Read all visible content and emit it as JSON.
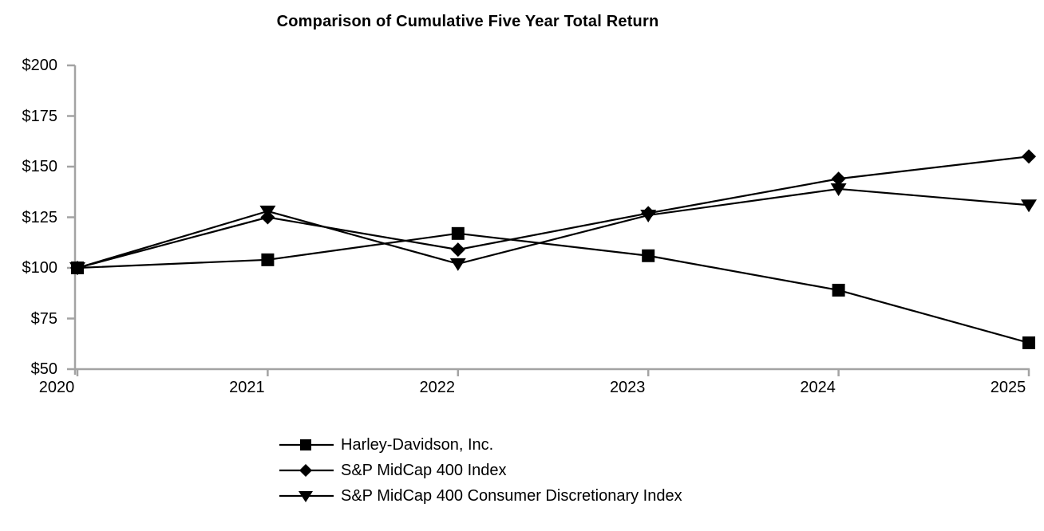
{
  "chart_data": {
    "type": "line",
    "title": "Comparison of Cumulative Five Year Total Return",
    "x_labels": [
      "2020",
      "2021",
      "2022",
      "2023",
      "2024",
      "2025"
    ],
    "ytick_values": [
      50,
      75,
      100,
      125,
      150,
      175,
      200
    ],
    "ytick_labels": [
      "$50",
      "$75",
      "$100",
      "$125",
      "$150",
      "$175",
      "$200"
    ],
    "ylim": [
      50,
      200
    ],
    "grid": false,
    "legend_position": "bottom-left",
    "axis_color": "#A3A3A3",
    "line_color": "#000000",
    "series": [
      {
        "name": "Harley-Davidson, Inc.",
        "marker": "square",
        "values": [
          100,
          104,
          117,
          106,
          89,
          63
        ]
      },
      {
        "name": "S&P MidCap 400 Index",
        "marker": "diamond",
        "values": [
          100,
          125,
          109,
          127,
          144,
          155
        ]
      },
      {
        "name": "S&P MidCap 400 Consumer Discretionary Index",
        "marker": "triangle-down",
        "values": [
          100,
          128,
          102,
          126,
          139,
          131
        ]
      }
    ]
  }
}
